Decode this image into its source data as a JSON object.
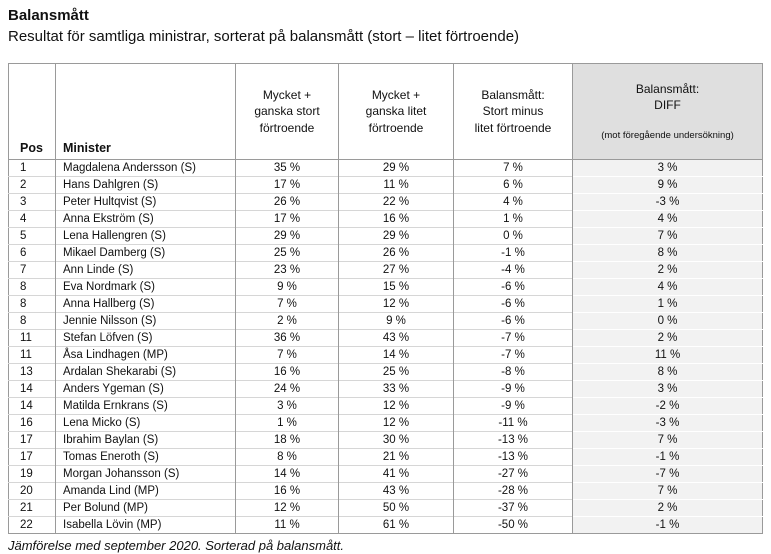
{
  "page": {
    "title": "Balansmått",
    "subtitle": "Resultat för samtliga ministrar, sorterat på balansmått (stort – litet förtroende)",
    "footnote": "Jämförelse med september 2020. Sorterad på balansmått."
  },
  "colors": {
    "diff_header_bg": "#dfdfdf",
    "diff_cell_bg": "#f2f2f2",
    "grid_vertical": "#9a9a9a",
    "grid_horizontal": "#d6d6d6"
  },
  "table": {
    "headers": {
      "pos": "Pos",
      "minister": "Minister",
      "big_trust": "Mycket +\nganska stort\nförtroende",
      "small_trust": "Mycket +\nganska litet\nförtroende",
      "balance": "Balansmått:\nStort minus\nlitet förtroende",
      "diff_main": "Balansmått:\nDIFF",
      "diff_sub": "(mot föregående undersökning)"
    },
    "rows": [
      {
        "pos": "1",
        "minister": "Magdalena Andersson (S)",
        "big": "35 %",
        "small": "29 %",
        "balance": "7 %",
        "diff": "3 %"
      },
      {
        "pos": "2",
        "minister": "Hans Dahlgren (S)",
        "big": "17 %",
        "small": "11 %",
        "balance": "6 %",
        "diff": "9 %"
      },
      {
        "pos": "3",
        "minister": "Peter Hultqvist (S)",
        "big": "26 %",
        "small": "22 %",
        "balance": "4 %",
        "diff": "-3 %"
      },
      {
        "pos": "4",
        "minister": "Anna Ekström (S)",
        "big": "17 %",
        "small": "16 %",
        "balance": "1 %",
        "diff": "4 %"
      },
      {
        "pos": "5",
        "minister": "Lena Hallengren (S)",
        "big": "29 %",
        "small": "29 %",
        "balance": "0 %",
        "diff": "7 %"
      },
      {
        "pos": "6",
        "minister": "Mikael Damberg (S)",
        "big": "25 %",
        "small": "26 %",
        "balance": "-1 %",
        "diff": "8 %"
      },
      {
        "pos": "7",
        "minister": "Ann Linde (S)",
        "big": "23 %",
        "small": "27 %",
        "balance": "-4 %",
        "diff": "2 %"
      },
      {
        "pos": "8",
        "minister": "Eva Nordmark (S)",
        "big": "9 %",
        "small": "15 %",
        "balance": "-6 %",
        "diff": "4 %"
      },
      {
        "pos": "8",
        "minister": "Anna Hallberg (S)",
        "big": "7 %",
        "small": "12 %",
        "balance": "-6 %",
        "diff": "1 %"
      },
      {
        "pos": "8",
        "minister": "Jennie Nilsson (S)",
        "big": "2 %",
        "small": "9 %",
        "balance": "-6 %",
        "diff": "0 %"
      },
      {
        "pos": "11",
        "minister": "Stefan Löfven (S)",
        "big": "36 %",
        "small": "43 %",
        "balance": "-7 %",
        "diff": "2 %"
      },
      {
        "pos": "11",
        "minister": "Åsa Lindhagen (MP)",
        "big": "7 %",
        "small": "14 %",
        "balance": "-7 %",
        "diff": "11 %"
      },
      {
        "pos": "13",
        "minister": "Ardalan Shekarabi (S)",
        "big": "16 %",
        "small": "25 %",
        "balance": "-8 %",
        "diff": "8 %"
      },
      {
        "pos": "14",
        "minister": "Anders Ygeman (S)",
        "big": "24 %",
        "small": "33 %",
        "balance": "-9 %",
        "diff": "3 %"
      },
      {
        "pos": "14",
        "minister": "Matilda Ernkrans (S)",
        "big": "3 %",
        "small": "12 %",
        "balance": "-9 %",
        "diff": "-2 %"
      },
      {
        "pos": "16",
        "minister": "Lena Micko (S)",
        "big": "1 %",
        "small": "12 %",
        "balance": "-11 %",
        "diff": "-3 %"
      },
      {
        "pos": "17",
        "minister": "Ibrahim Baylan (S)",
        "big": "18 %",
        "small": "30 %",
        "balance": "-13 %",
        "diff": "7 %"
      },
      {
        "pos": "17",
        "minister": "Tomas Eneroth (S)",
        "big": "8 %",
        "small": "21 %",
        "balance": "-13 %",
        "diff": "-1 %"
      },
      {
        "pos": "19",
        "minister": "Morgan Johansson (S)",
        "big": "14 %",
        "small": "41 %",
        "balance": "-27 %",
        "diff": "-7 %"
      },
      {
        "pos": "20",
        "minister": "Amanda Lind (MP)",
        "big": "16 %",
        "small": "43 %",
        "balance": "-28 %",
        "diff": "7 %"
      },
      {
        "pos": "21",
        "minister": "Per Bolund (MP)",
        "big": "12 %",
        "small": "50 %",
        "balance": "-37 %",
        "diff": "2 %"
      },
      {
        "pos": "22",
        "minister": "Isabella Lövin (MP)",
        "big": "11 %",
        "small": "61 %",
        "balance": "-50 %",
        "diff": "-1 %"
      }
    ]
  }
}
